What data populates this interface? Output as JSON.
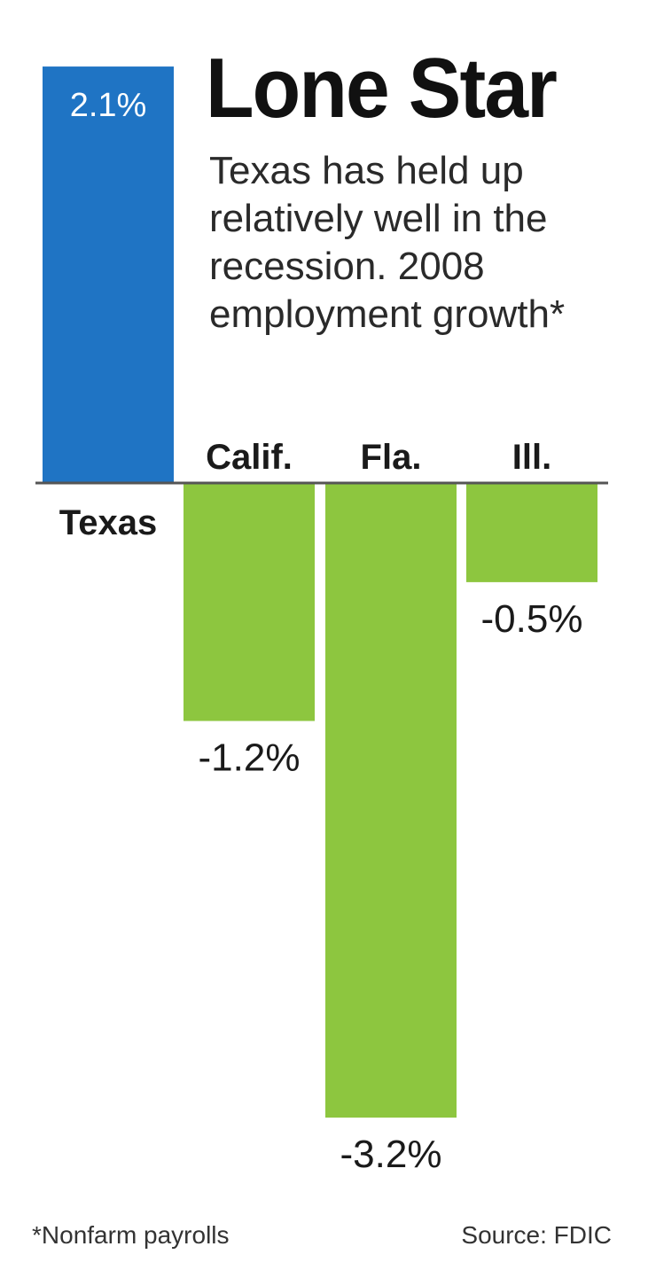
{
  "title": "Lone Star",
  "subtitle": "Texas has held up relatively well in the recession. 2008 employment growth*",
  "footnote": "*Nonfarm payrolls",
  "source": "Source: FDIC",
  "colors": {
    "positive_bar": "#1f74c4",
    "negative_bar": "#8dc63f",
    "baseline": "#555555",
    "text": "#1a1a1a",
    "inner_label": "#ffffff"
  },
  "chart_data": {
    "type": "bar",
    "categories": [
      "Texas",
      "Calif.",
      "Fla.",
      "Ill."
    ],
    "values": [
      2.1,
      -1.2,
      -3.2,
      -0.5
    ],
    "value_labels": [
      "2.1%",
      "-1.2%",
      "-3.2%",
      "-0.5%"
    ],
    "title": "Lone Star",
    "subtitle": "Texas has held up relatively well in the recession. 2008 employment growth*",
    "ylabel": "",
    "xlabel": "",
    "ylim": [
      -3.2,
      2.1
    ],
    "grid": false,
    "legend": "none"
  }
}
